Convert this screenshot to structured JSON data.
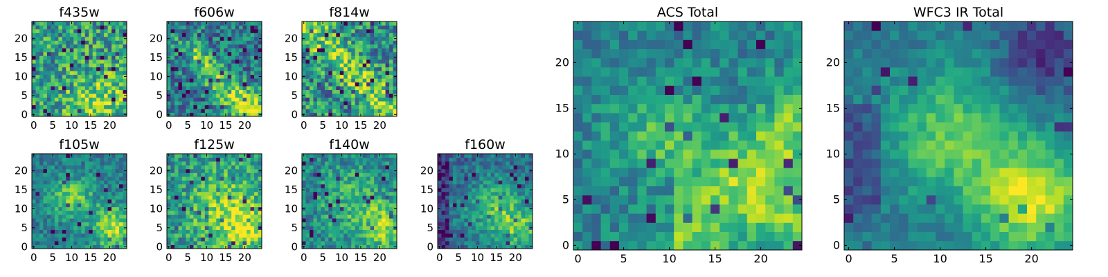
{
  "chart_data": [
    {
      "type": "heatmap",
      "title": "f435w",
      "xticks": [
        0,
        5,
        10,
        15,
        20
      ],
      "yticks": [
        0,
        5,
        10,
        15,
        20
      ],
      "xlim": [
        0,
        25
      ],
      "ylim": [
        0,
        25
      ],
      "colormap": "viridis",
      "pattern": "noisy, slight bright region lower-right"
    },
    {
      "type": "heatmap",
      "title": "f606w",
      "xticks": [
        0,
        5,
        10,
        15,
        20
      ],
      "yticks": [
        0,
        5,
        10,
        15,
        20
      ],
      "xlim": [
        0,
        25
      ],
      "ylim": [
        0,
        25
      ],
      "colormap": "viridis",
      "pattern": "noisy, bright diagonal band toward lower-right"
    },
    {
      "type": "heatmap",
      "title": "f814w",
      "xticks": [
        0,
        5,
        10,
        15,
        20
      ],
      "yticks": [
        0,
        5,
        10,
        15,
        20
      ],
      "xlim": [
        0,
        25
      ],
      "ylim": [
        0,
        25
      ],
      "colormap": "viridis",
      "pattern": "noisy, bright diagonal band"
    },
    {
      "type": "heatmap",
      "title": "f105w",
      "xticks": [
        0,
        5,
        10,
        15,
        20
      ],
      "yticks": [
        0,
        5,
        10,
        15,
        20
      ],
      "xlim": [
        0,
        25
      ],
      "ylim": [
        0,
        25
      ],
      "colormap": "viridis",
      "pattern": "bright blob center and lower-right"
    },
    {
      "type": "heatmap",
      "title": "f125w",
      "xticks": [
        0,
        5,
        10,
        15,
        20
      ],
      "yticks": [
        0,
        5,
        10,
        15,
        20
      ],
      "xlim": [
        0,
        25
      ],
      "ylim": [
        0,
        25
      ],
      "colormap": "viridis",
      "pattern": "bright region center-right"
    },
    {
      "type": "heatmap",
      "title": "f140w",
      "xticks": [
        0,
        5,
        10,
        15,
        20
      ],
      "yticks": [
        0,
        5,
        10,
        15,
        20
      ],
      "xlim": [
        0,
        25
      ],
      "ylim": [
        0,
        25
      ],
      "colormap": "viridis",
      "pattern": "bright region lower-right"
    },
    {
      "type": "heatmap",
      "title": "f160w",
      "xticks": [
        0,
        5,
        10,
        15,
        20
      ],
      "yticks": [
        0,
        5,
        10,
        15,
        20
      ],
      "xlim": [
        0,
        25
      ],
      "ylim": [
        0,
        25
      ],
      "colormap": "viridis",
      "pattern": "bright blob center-right, darker left edge"
    },
    {
      "type": "heatmap",
      "title": "ACS Total",
      "xticks": [
        0,
        5,
        10,
        15,
        20
      ],
      "yticks": [
        0,
        5,
        10,
        15,
        20
      ],
      "xlim": [
        0,
        25
      ],
      "ylim": [
        0,
        25
      ],
      "colormap": "viridis",
      "pattern": "bright band from center to lower-right"
    },
    {
      "type": "heatmap",
      "title": "WFC3 IR Total",
      "xticks": [
        0,
        5,
        10,
        15,
        20
      ],
      "yticks": [
        0,
        5,
        10,
        15,
        20
      ],
      "xlim": [
        0,
        25
      ],
      "ylim": [
        0,
        25
      ],
      "colormap": "viridis",
      "pattern": "smooth bright region center and lower-right, dark upper-right corner"
    }
  ]
}
